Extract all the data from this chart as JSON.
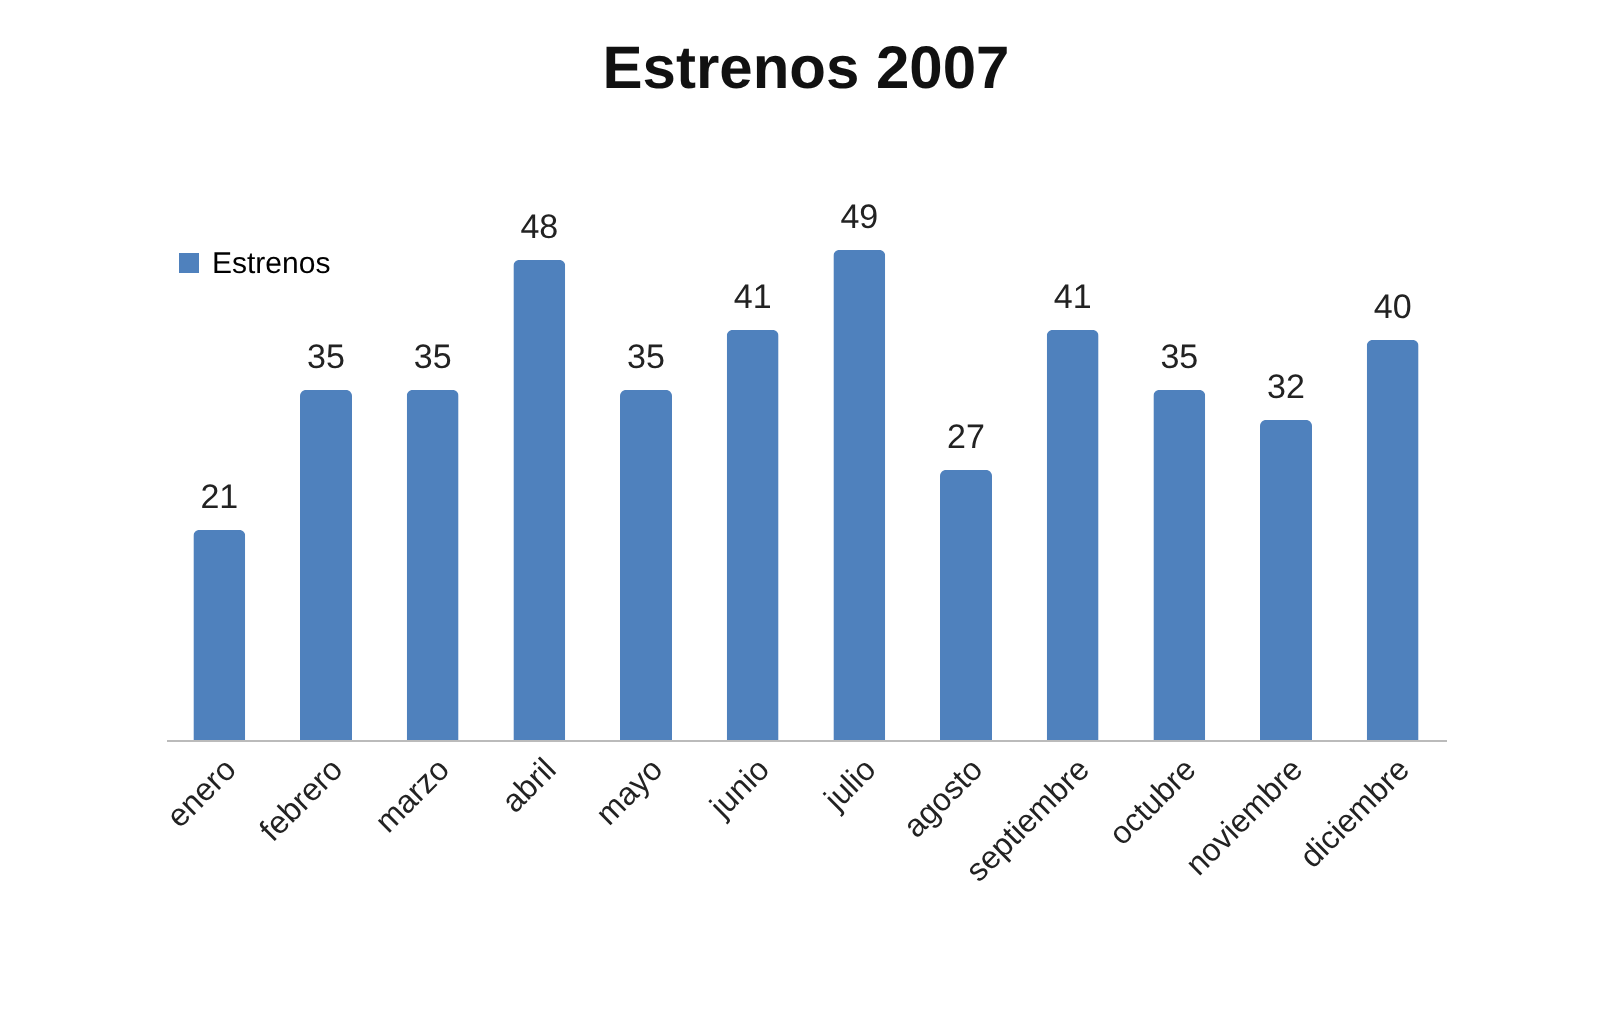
{
  "chart_data": {
    "type": "bar",
    "title": "Estrenos 2007",
    "categories": [
      "enero",
      "febrero",
      "marzo",
      "abril",
      "mayo",
      "junio",
      "julio",
      "agosto",
      "septiembre",
      "octubre",
      "noviembre",
      "diciembre"
    ],
    "series": [
      {
        "name": "Estrenos",
        "color": "#4f81bd",
        "values": [
          21,
          35,
          35,
          48,
          35,
          41,
          49,
          27,
          41,
          35,
          32,
          40
        ]
      }
    ],
    "data_labels": true,
    "legend": "top left"
  }
}
